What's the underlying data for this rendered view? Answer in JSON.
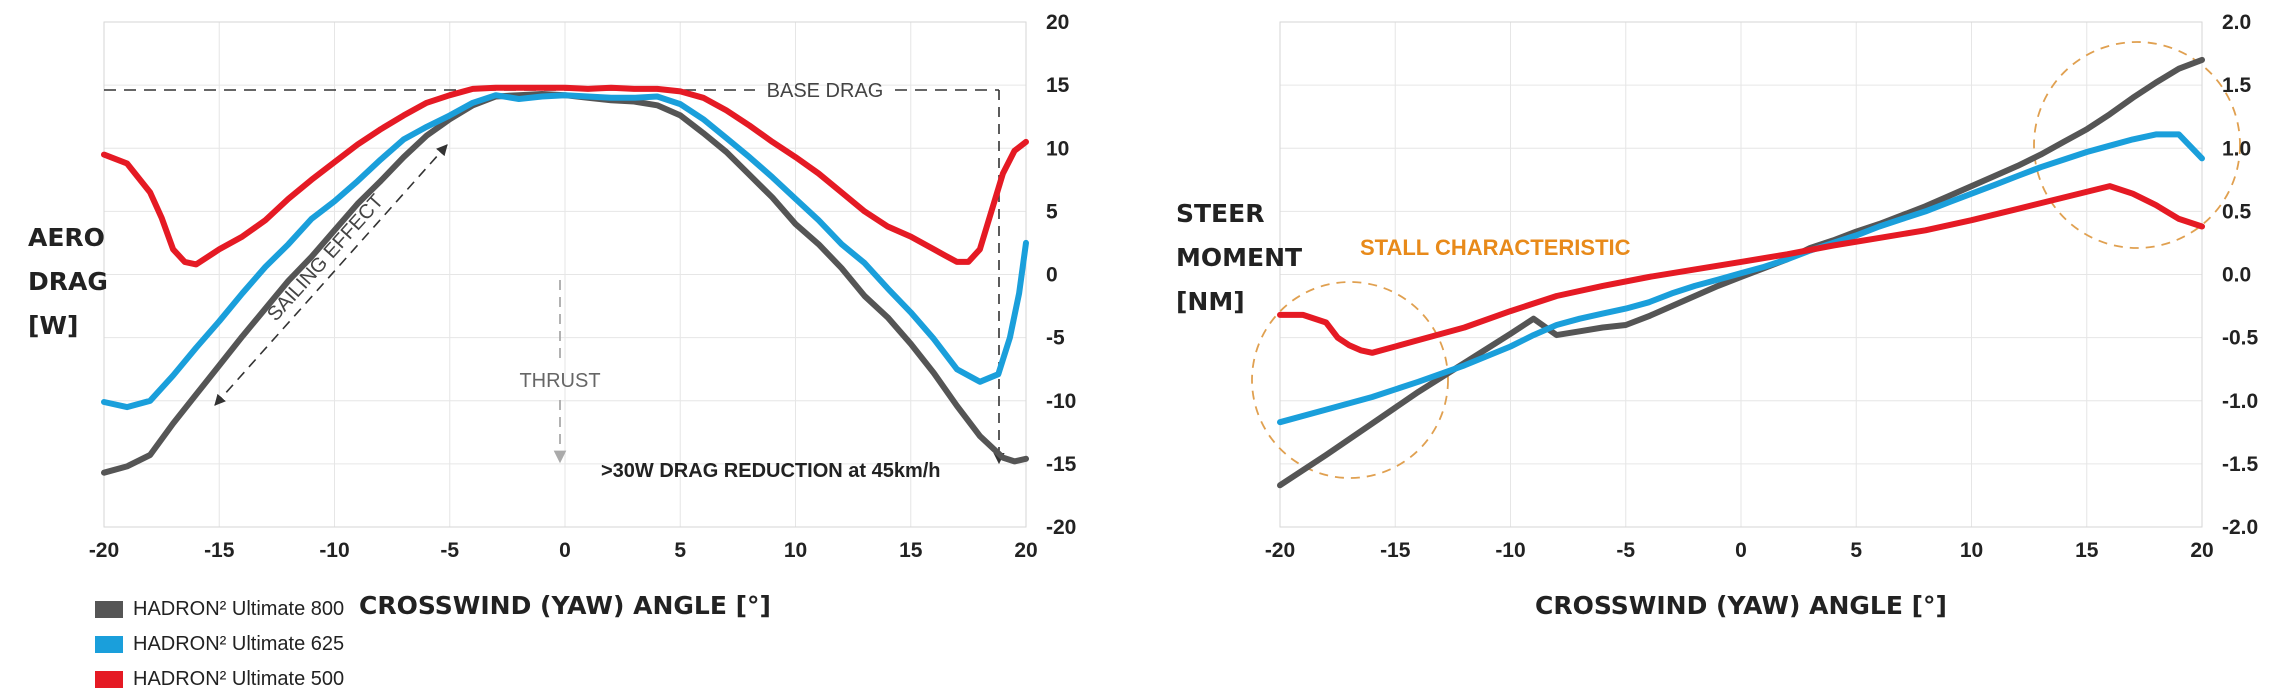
{
  "legend": [
    {
      "label": "HADRON² Ultimate 800",
      "color": "#555555"
    },
    {
      "label": "HADRON² Ultimate 625",
      "color": "#1a9fdb"
    },
    {
      "label": "HADRON² Ultimate 500",
      "color": "#e51a24"
    }
  ],
  "chart_data": [
    {
      "type": "line",
      "ylabel": [
        "AERO",
        "DRAG",
        "[W]"
      ],
      "xlabel": "CROSSWIND (YAW) ANGLE [°]",
      "xlim": [
        -20,
        20
      ],
      "ylim": [
        -20,
        20
      ],
      "xticks": [
        -20,
        -15,
        -10,
        -5,
        0,
        5,
        10,
        15,
        20
      ],
      "xtick_labels": [
        "-20",
        "-15",
        "-10",
        "-5",
        "0",
        "5",
        "10",
        "15",
        "20"
      ],
      "yticks": [
        20,
        15,
        10,
        5,
        0,
        -5,
        -10,
        -15,
        -20
      ],
      "ytick_labels": [
        "20",
        "15",
        "10",
        "5",
        "0",
        "-5",
        "-10",
        "-15",
        "-20"
      ],
      "grid": true,
      "legend_position": "bottom-left",
      "annotations": {
        "base_drag": "BASE DRAG",
        "sailing_effect": "SAILING EFFECT",
        "thrust": "THRUST",
        "drag_reduction": ">30W DRAG REDUCTION at 45km/h"
      },
      "series": [
        {
          "name": "HADRON² Ultimate 800",
          "color": "#555555",
          "x": [
            -20,
            -19,
            -18,
            -17,
            -16,
            -15,
            -14,
            -13,
            -12,
            -11,
            -10,
            -9,
            -8,
            -7,
            -6,
            -5,
            -4,
            -3,
            -2,
            -1,
            0,
            1,
            2,
            3,
            4,
            5,
            6,
            7,
            8,
            9,
            10,
            11,
            12,
            13,
            14,
            15,
            16,
            17,
            18,
            19,
            19.5,
            20
          ],
          "y": [
            -15.7,
            -15.2,
            -14.3,
            -11.8,
            -9.5,
            -7.2,
            -4.9,
            -2.7,
            -0.5,
            1.4,
            3.5,
            5.6,
            7.4,
            9.3,
            11.0,
            12.3,
            13.4,
            14.1,
            14.2,
            14.3,
            14.2,
            14.0,
            13.8,
            13.7,
            13.4,
            12.6,
            11.2,
            9.7,
            7.9,
            6.1,
            4.0,
            2.4,
            0.5,
            -1.7,
            -3.4,
            -5.5,
            -7.8,
            -10.4,
            -12.8,
            -14.5,
            -14.8,
            -14.6
          ]
        },
        {
          "name": "HADRON² Ultimate 625",
          "color": "#1a9fdb",
          "x": [
            -20,
            -19,
            -18,
            -17,
            -16,
            -15,
            -14,
            -13,
            -12,
            -11,
            -10,
            -9,
            -8,
            -7,
            -6,
            -5,
            -4,
            -3,
            -2,
            -1,
            0,
            1,
            2,
            3,
            4,
            5,
            6,
            7,
            8,
            9,
            10,
            11,
            12,
            13,
            14,
            15,
            16,
            17,
            18,
            18.8,
            19.3,
            19.7,
            20
          ],
          "y": [
            -10.1,
            -10.5,
            -10.0,
            -8.0,
            -5.8,
            -3.7,
            -1.5,
            0.6,
            2.4,
            4.4,
            5.8,
            7.4,
            9.1,
            10.7,
            11.7,
            12.6,
            13.6,
            14.2,
            13.9,
            14.1,
            14.2,
            14.1,
            14.0,
            14.0,
            14.1,
            13.5,
            12.3,
            10.8,
            9.3,
            7.7,
            6.0,
            4.3,
            2.4,
            0.9,
            -1.1,
            -3.0,
            -5.1,
            -7.5,
            -8.5,
            -7.9,
            -5.0,
            -1.5,
            2.5
          ]
        },
        {
          "name": "HADRON² Ultimate 500",
          "color": "#e51a24",
          "x": [
            -20,
            -19,
            -18,
            -17.5,
            -17,
            -16.5,
            -16,
            -15,
            -14,
            -13,
            -12,
            -11,
            -10,
            -9,
            -8,
            -7,
            -6,
            -5,
            -4,
            -3,
            -2,
            -1,
            0,
            1,
            2,
            3,
            4,
            5,
            6,
            7,
            8,
            9,
            10,
            11,
            12,
            13,
            14,
            15,
            16,
            16.5,
            17,
            17.5,
            18,
            18.5,
            19,
            19.5,
            20
          ],
          "y": [
            9.5,
            8.8,
            6.5,
            4.5,
            2.0,
            1.0,
            0.8,
            2.0,
            3.0,
            4.3,
            6.0,
            7.5,
            8.9,
            10.3,
            11.5,
            12.6,
            13.6,
            14.2,
            14.7,
            14.8,
            14.8,
            14.8,
            14.8,
            14.7,
            14.8,
            14.7,
            14.7,
            14.5,
            14.0,
            13.0,
            11.8,
            10.5,
            9.3,
            8.0,
            6.5,
            5.0,
            3.8,
            3.0,
            2.0,
            1.5,
            1.0,
            1.0,
            2.0,
            5.0,
            8.0,
            9.8,
            10.5
          ]
        }
      ]
    },
    {
      "type": "line",
      "ylabel": [
        "STEER",
        "MOMENT",
        "[NM]"
      ],
      "xlabel": "CROSSWIND (YAW) ANGLE [°]",
      "xlim": [
        -20,
        20
      ],
      "ylim": [
        -2.0,
        2.0
      ],
      "xticks": [
        -20,
        -15,
        -10,
        -5,
        0,
        5,
        10,
        15,
        20
      ],
      "xtick_labels": [
        "-20",
        "-15",
        "-10",
        "-5",
        "0",
        "5",
        "10",
        "15",
        "20"
      ],
      "yticks": [
        2.0,
        1.5,
        1.0,
        0.5,
        0.0,
        -0.5,
        -1.0,
        -1.5,
        -2.0
      ],
      "ytick_labels": [
        "2.0",
        "1.5",
        "1.0",
        "0.5",
        "0.0",
        "-0.5",
        "-1.0",
        "-1.5",
        "-2.0"
      ],
      "grid": true,
      "annotations": {
        "stall": "STALL CHARACTERISTIC"
      },
      "series": [
        {
          "name": "HADRON² Ultimate 800",
          "color": "#555555",
          "x": [
            -20,
            -18,
            -16,
            -14,
            -12,
            -10,
            -9,
            -8,
            -7,
            -6,
            -5,
            -4,
            -3,
            -2,
            -1,
            0,
            1,
            2,
            3,
            4,
            5,
            6,
            7,
            8,
            9,
            10,
            11,
            12,
            13,
            14,
            15,
            16,
            17,
            18,
            19,
            20
          ],
          "y": [
            -1.67,
            -1.43,
            -1.18,
            -0.93,
            -0.7,
            -0.47,
            -0.35,
            -0.48,
            -0.45,
            -0.42,
            -0.4,
            -0.33,
            -0.25,
            -0.17,
            -0.09,
            -0.02,
            0.05,
            0.12,
            0.21,
            0.27,
            0.34,
            0.4,
            0.47,
            0.54,
            0.62,
            0.7,
            0.78,
            0.86,
            0.95,
            1.05,
            1.15,
            1.27,
            1.4,
            1.52,
            1.63,
            1.7
          ]
        },
        {
          "name": "HADRON² Ultimate 625",
          "color": "#1a9fdb",
          "x": [
            -20,
            -18,
            -16,
            -14,
            -12,
            -10,
            -9,
            -8,
            -7,
            -6,
            -5,
            -4,
            -3,
            -2,
            -1,
            0,
            1,
            2,
            3,
            4,
            5,
            6,
            7,
            8,
            9,
            10,
            11,
            12,
            13,
            14,
            15,
            16,
            17,
            18,
            19,
            20
          ],
          "y": [
            -1.17,
            -1.07,
            -0.97,
            -0.85,
            -0.72,
            -0.57,
            -0.48,
            -0.4,
            -0.35,
            -0.31,
            -0.27,
            -0.22,
            -0.15,
            -0.09,
            -0.04,
            0.01,
            0.06,
            0.12,
            0.19,
            0.25,
            0.31,
            0.38,
            0.44,
            0.5,
            0.57,
            0.64,
            0.71,
            0.78,
            0.85,
            0.91,
            0.97,
            1.02,
            1.07,
            1.11,
            1.11,
            0.92
          ]
        },
        {
          "name": "HADRON² Ultimate 500",
          "color": "#e51a24",
          "x": [
            -20,
            -19,
            -18,
            -17.5,
            -17,
            -16.5,
            -16,
            -15,
            -14,
            -12,
            -10,
            -8,
            -6,
            -4,
            -2,
            0,
            2,
            4,
            6,
            8,
            10,
            12,
            14,
            16,
            17,
            18,
            19,
            20
          ],
          "y": [
            -0.32,
            -0.32,
            -0.38,
            -0.5,
            -0.56,
            -0.6,
            -0.62,
            -0.57,
            -0.52,
            -0.42,
            -0.29,
            -0.17,
            -0.09,
            -0.02,
            0.04,
            0.1,
            0.16,
            0.23,
            0.29,
            0.35,
            0.43,
            0.52,
            0.61,
            0.7,
            0.64,
            0.55,
            0.44,
            0.38
          ]
        }
      ]
    }
  ]
}
